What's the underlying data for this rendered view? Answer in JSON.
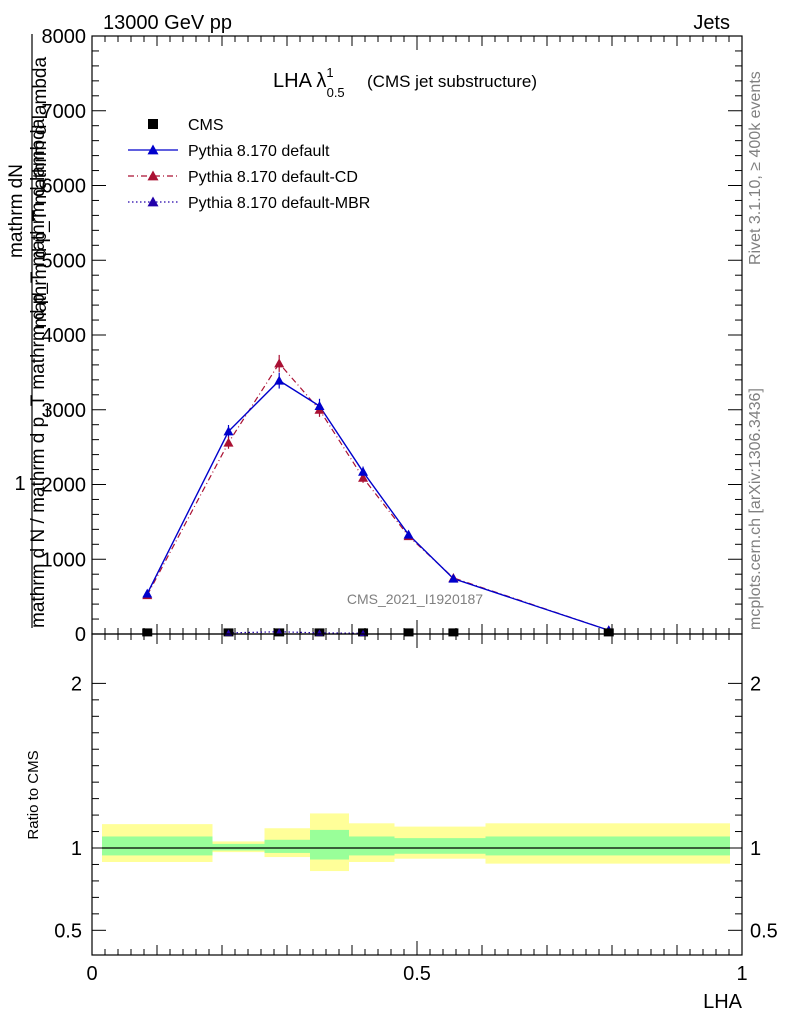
{
  "header": {
    "energy_label": "13000 GeV pp",
    "process_label": "Jets"
  },
  "side_labels": {
    "rivet": "Rivet 3.1.10, ≥ 400k events",
    "mcplots": "mcplots.cern.ch [arXiv:1306.3436]"
  },
  "plot_title": {
    "main": "LHA λ",
    "sup": "1",
    "sub": "0.5",
    "suffix": "(CMS jet substructure)"
  },
  "analysis_label": "CMS_2021_I1920187",
  "y_axis_label": {
    "one": "1",
    "denominator": "mathrm d N / mathrm d p_T mathrm d p_T mathrm d lambda",
    "numerator": "mathrm d^2N",
    "numerator_top": "mathrm dN",
    "denominator_part": "mathrm d p_T mathrm d lambda"
  },
  "legend": [
    {
      "name": "CMS",
      "color": "#000000",
      "marker": "square",
      "line": "none"
    },
    {
      "name": "Pythia 8.170 default",
      "color": "#0000cc",
      "marker": "triangle",
      "line": "solid"
    },
    {
      "name": "Pythia 8.170 default-CD",
      "color": "#aa1133",
      "marker": "triangle",
      "line": "dashdot"
    },
    {
      "name": "Pythia 8.170 default-MBR",
      "color": "#2200aa",
      "marker": "triangle",
      "line": "dotted"
    }
  ],
  "chart_data": [
    {
      "type": "line",
      "panel": "main",
      "xlim": [
        0,
        1
      ],
      "ylim": [
        0,
        8000
      ],
      "yticks": [
        0,
        1000,
        2000,
        3000,
        4000,
        5000,
        6000,
        7000,
        8000
      ],
      "ytick_labels": [
        "0",
        "1000",
        "2000",
        "3000",
        "4000",
        "5000",
        "6000",
        "7000",
        "8000"
      ],
      "x": [
        0.085,
        0.21,
        0.288,
        0.35,
        0.417,
        0.487,
        0.556,
        0.795
      ],
      "series": [
        {
          "name": "CMS",
          "values": [
            8,
            8,
            8,
            8,
            8,
            8,
            8,
            8
          ]
        },
        {
          "name": "Pythia 8.170 default",
          "values": [
            540,
            2710,
            3390,
            3050,
            2170,
            1330,
            740,
            50
          ]
        },
        {
          "name": "Pythia 8.170 default-CD",
          "values": [
            520,
            2560,
            3620,
            3000,
            2090,
            1310,
            750,
            50
          ]
        },
        {
          "name": "Pythia 8.170 default-MBR",
          "values": [
            540,
            2710,
            3390,
            3050,
            2170,
            1330,
            740,
            50
          ]
        }
      ],
      "mbr_low_x": [
        0.21,
        0.288,
        0.35,
        0.417
      ],
      "mbr_low_values": [
        15,
        30,
        15,
        10
      ]
    },
    {
      "type": "area",
      "panel": "ratio",
      "xlabel": "LHA",
      "ylabel": "Ratio to CMS",
      "xlim": [
        0,
        1
      ],
      "ylim": [
        0.35,
        2.3
      ],
      "yticks": [
        0.5,
        1,
        2
      ],
      "ytick_labels": [
        "0.5",
        "1",
        "2"
      ],
      "xticks": [
        0,
        0.5,
        1
      ],
      "xtick_labels": [
        "0",
        "0.5",
        "1"
      ],
      "bins": [
        {
          "x0": 0.0,
          "x1": 0.17,
          "yellow": [
            0.915,
            1.145
          ],
          "green": [
            0.955,
            1.07
          ]
        },
        {
          "x0": 0.17,
          "x1": 0.25,
          "yellow": [
            0.975,
            1.04
          ],
          "green": [
            0.985,
            1.025
          ]
        },
        {
          "x0": 0.25,
          "x1": 0.32,
          "yellow": [
            0.945,
            1.12
          ],
          "green": [
            0.97,
            1.05
          ]
        },
        {
          "x0": 0.32,
          "x1": 0.38,
          "yellow": [
            0.86,
            1.21
          ],
          "green": [
            0.93,
            1.11
          ]
        },
        {
          "x0": 0.38,
          "x1": 0.45,
          "yellow": [
            0.915,
            1.15
          ],
          "green": [
            0.955,
            1.07
          ]
        },
        {
          "x0": 0.45,
          "x1": 0.59,
          "yellow": [
            0.935,
            1.13
          ],
          "green": [
            0.965,
            1.06
          ]
        },
        {
          "x0": 0.59,
          "x1": 1.0,
          "yellow": [
            0.905,
            1.15
          ],
          "green": [
            0.955,
            1.07
          ]
        }
      ]
    }
  ]
}
